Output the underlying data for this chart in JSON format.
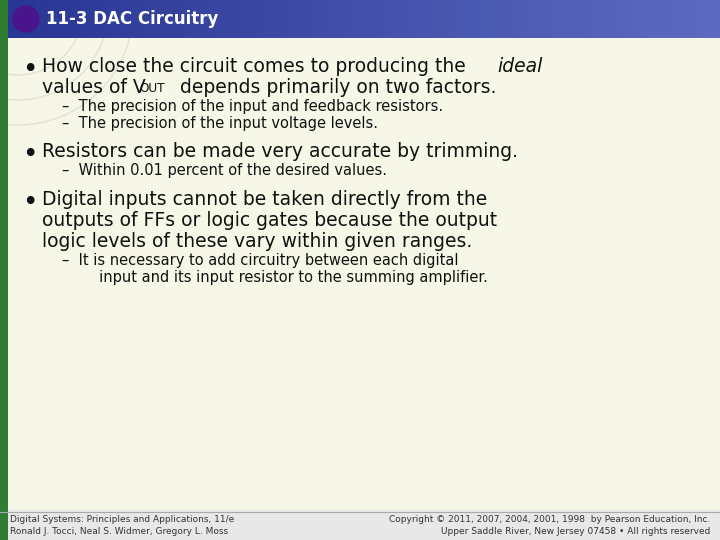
{
  "title": "11-3 DAC Circuitry",
  "title_bg_left": "#283593",
  "title_bg_right": "#5c6bc0",
  "title_text_color": "#ffffff",
  "title_bullet_color": "#4a148c",
  "green_bar_color": "#2e7d32",
  "body_bg_color": "#f7f7e8",
  "slide_bg_color": "#e8e8e8",
  "footer_line_color": "#aaaaaa",
  "footer_left": "Digital Systems: Principles and Applications, 11/e\nRonald J. Tocci, Neal S. Widmer, Gregory L. Moss",
  "footer_right": "Copyright © 2011, 2007, 2004, 2001, 1998  by Pearson Education, Inc.\nUpper Saddle River, New Jersey 07458 • All rights reserved",
  "b1_pre": "How close the circuit comes to producing the ",
  "b1_italic": "ideal",
  "b1_line2a": "values of V",
  "b1_sub": "OUT",
  "b1_line2b": " depends primarily on two factors.",
  "b1_s1": "–  The precision of the input and feedback resistors.",
  "b1_s2": "–  The precision of the input voltage levels.",
  "b2_main": "Resistors can be made very accurate by trimming.",
  "b2_s1": "–  Within 0.01 percent of the desired values.",
  "b3_l1": "Digital inputs cannot be taken directly from the",
  "b3_l2": "outputs of FFs or logic gates because the output",
  "b3_l3": "logic levels of these vary within given ranges.",
  "b3_s1a": "–  It is necessary to add circuitry between each digital",
  "b3_s1b": "     input and its input resistor to the summing amplifier.",
  "text_color": "#111111",
  "main_fs": 13.5,
  "sub_fs": 10.5,
  "footer_fs": 6.5,
  "title_fs": 12
}
